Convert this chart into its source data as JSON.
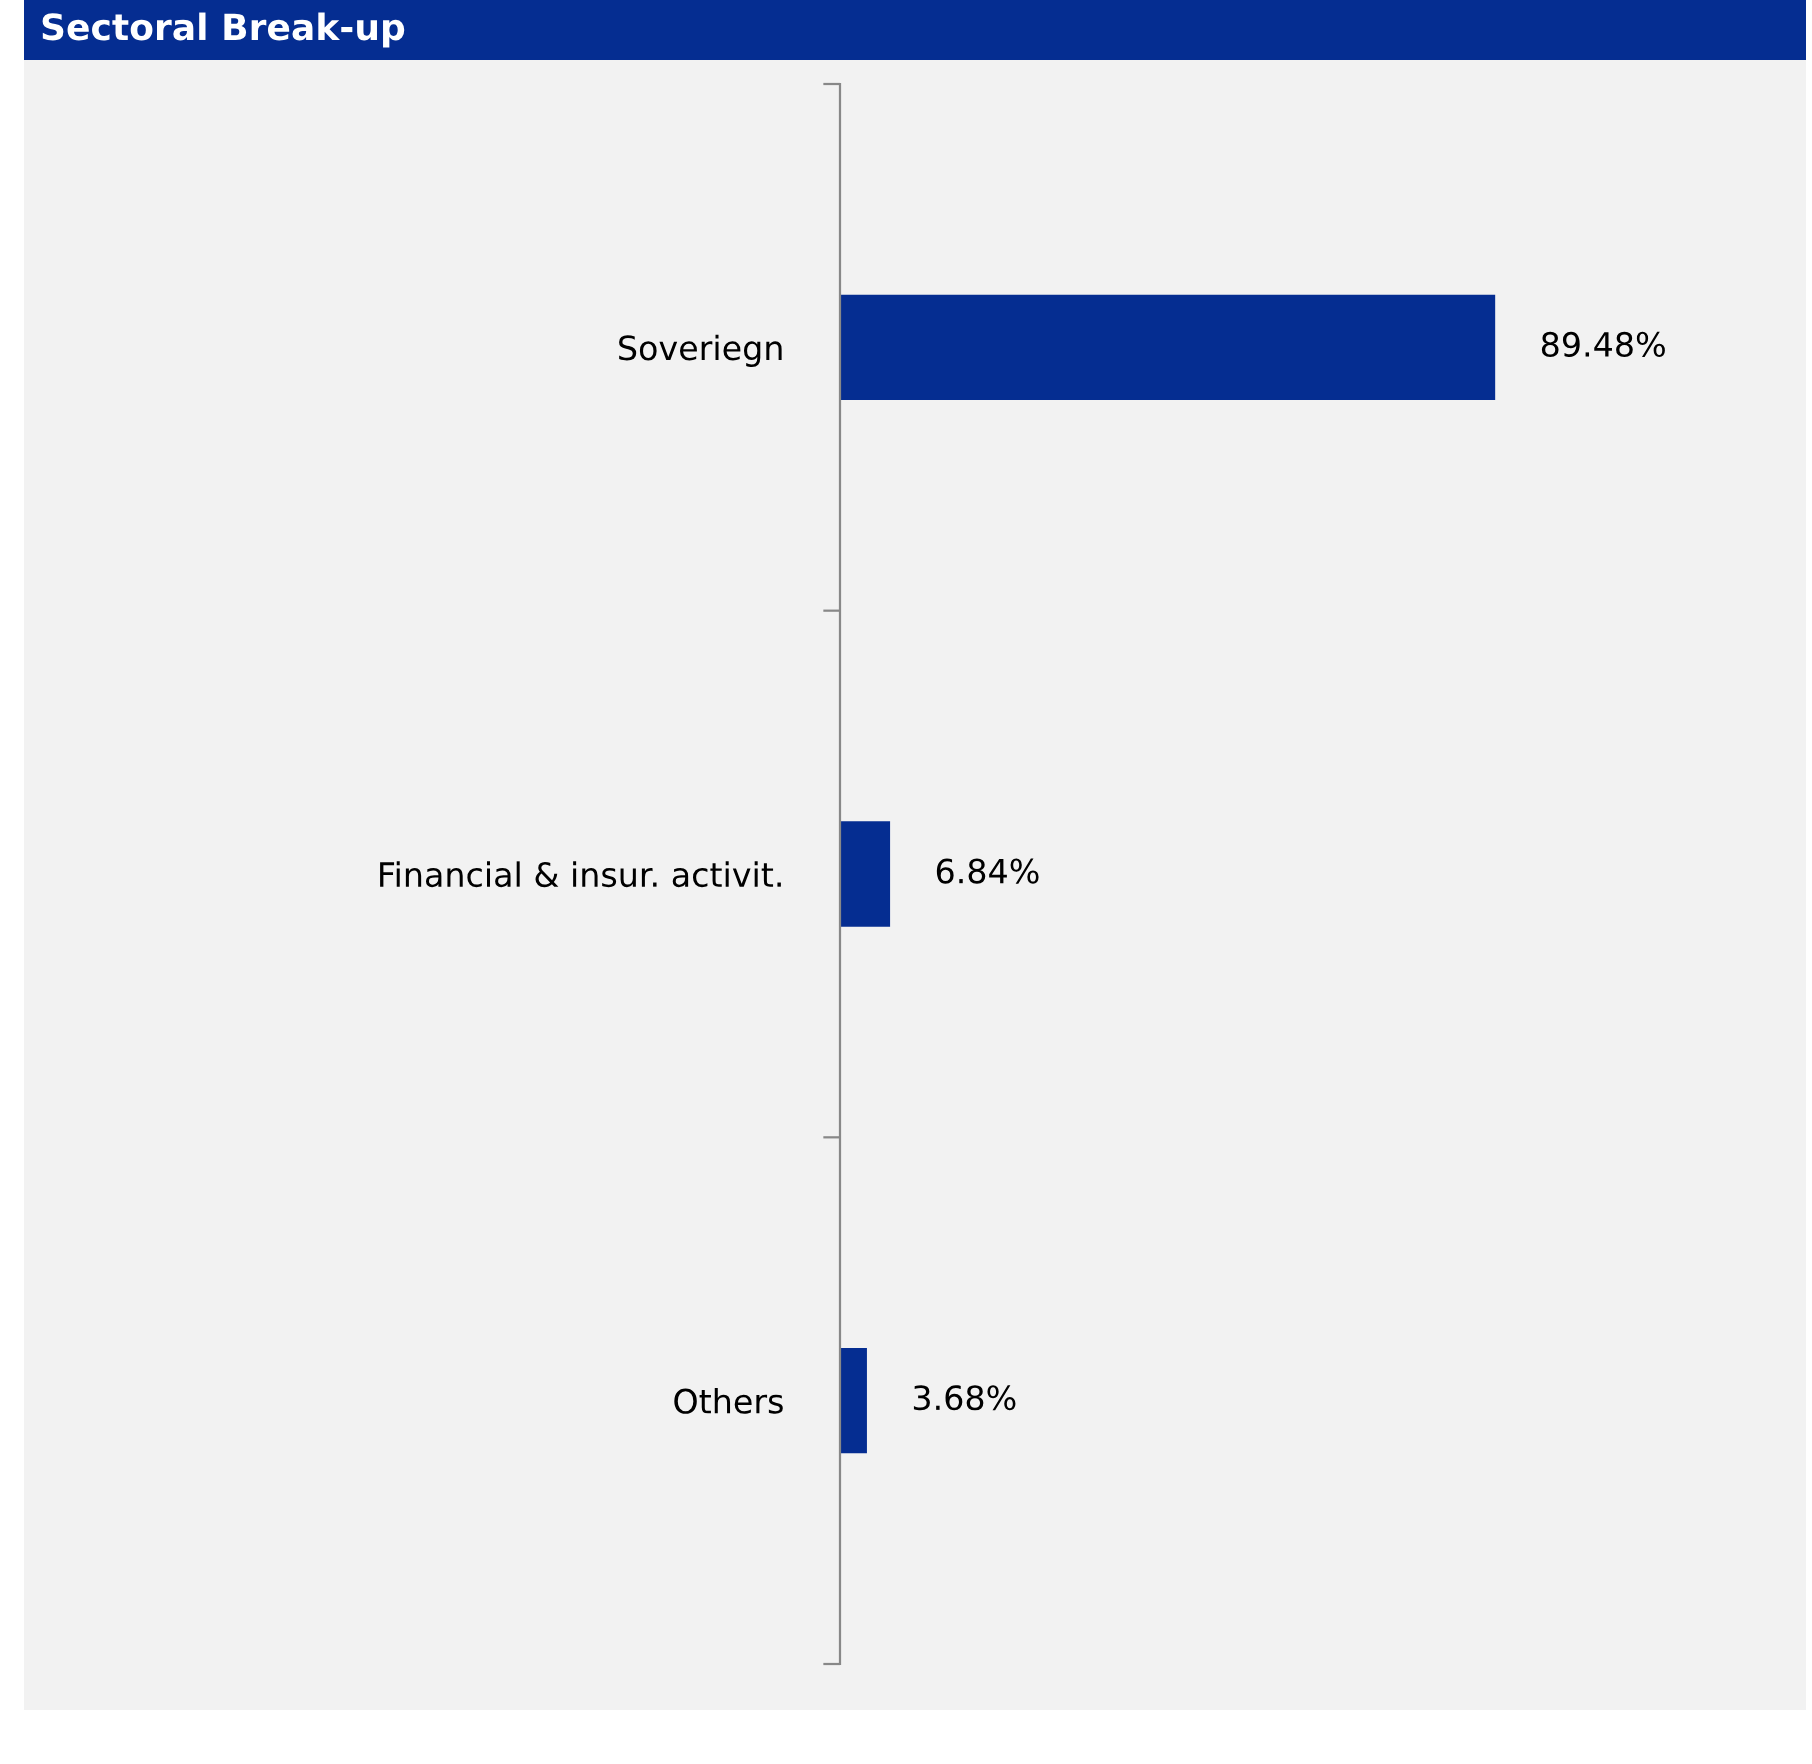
{
  "chart_data": {
    "type": "bar",
    "orientation": "horizontal",
    "title": "Sectoral Break-up",
    "categories": [
      "Soveriegn",
      "Financial & insur. activit.",
      "Others"
    ],
    "values": [
      89.48,
      6.84,
      3.68
    ],
    "color": "#052d91",
    "value_labels": [
      "89.48%",
      "6.84%",
      "3.68%"
    ],
    "grid": false,
    "legend": false
  }
}
